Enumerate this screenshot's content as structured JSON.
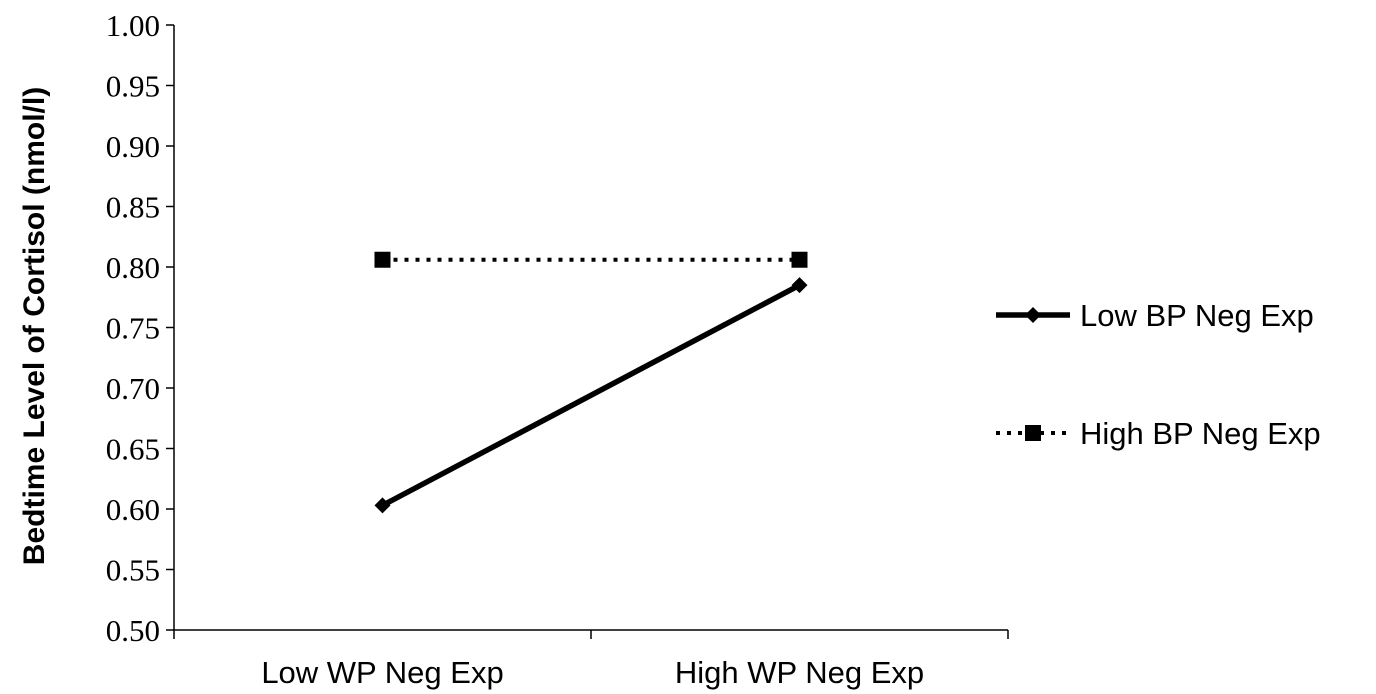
{
  "chart_data": {
    "type": "line",
    "title": "",
    "xlabel": "",
    "ylabel": "Bedtime Level of Cortisol (nmol/l)",
    "categories": [
      "Low WP Neg Exp",
      "High WP Neg Exp"
    ],
    "ylim": [
      0.5,
      1.0
    ],
    "yticks": [
      "0.50",
      "0.55",
      "0.60",
      "0.65",
      "0.70",
      "0.75",
      "0.80",
      "0.85",
      "0.90",
      "0.95",
      "1.00"
    ],
    "grid": false,
    "legend_position": "right",
    "series": [
      {
        "name": "Low BP Neg Exp",
        "values": [
          0.603,
          0.785
        ],
        "line_style": "solid",
        "marker": "diamond",
        "color": "#000000"
      },
      {
        "name": "High BP Neg Exp",
        "values": [
          0.806,
          0.806
        ],
        "line_style": "dotted",
        "marker": "square",
        "color": "#000000"
      }
    ]
  }
}
